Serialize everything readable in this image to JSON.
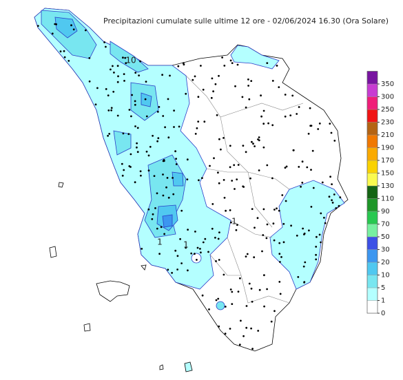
{
  "title": "Precipitazioni cumulate sulle ultime 12 ore - 02/06/2024 16.30 (Ora Solare)",
  "legend": {
    "levels": [
      0,
      1,
      5,
      10,
      20,
      30,
      50,
      70,
      90,
      110,
      130,
      150,
      170,
      190,
      210,
      230,
      250,
      300,
      350
    ],
    "colors": [
      "#ffffff",
      "#b4ffff",
      "#78e6f0",
      "#50c8f0",
      "#3c96f0",
      "#3c50e6",
      "#78f0a0",
      "#28c850",
      "#1e9628",
      "#146414",
      "#fafa50",
      "#fad200",
      "#faaa00",
      "#f07800",
      "#b46414",
      "#f01414",
      "#f01e78",
      "#c83cd2",
      "#7814a0"
    ]
  },
  "contour_labels": [
    "10",
    "1",
    "1",
    "1"
  ]
}
